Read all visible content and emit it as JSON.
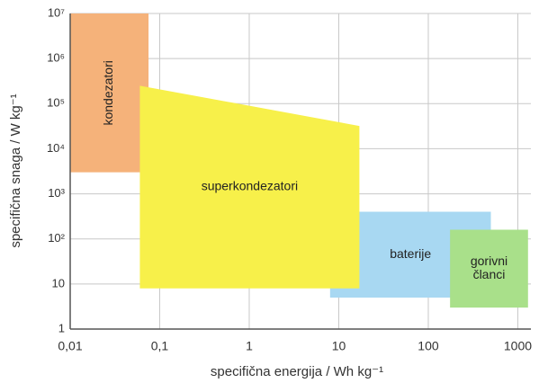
{
  "chart_data": {
    "type": "region",
    "xlabel": "specifična energija / Wh kg⁻¹",
    "ylabel": "specifična snaga / W kg⁻¹",
    "xscale": "log",
    "yscale": "log",
    "grid": true,
    "xlim": [
      0.01,
      1400
    ],
    "ylim": [
      1,
      10000000
    ],
    "xticks": [
      {
        "value": 0.01,
        "label": "0,01"
      },
      {
        "value": 0.1,
        "label": "0,1"
      },
      1,
      10,
      100,
      1000
    ],
    "yticks": [
      1,
      10,
      {
        "value": 100,
        "label": "10²"
      },
      {
        "value": 1000,
        "label": "10³"
      },
      {
        "value": 10000,
        "label": "10⁴"
      },
      {
        "value": 100000,
        "label": "10⁵"
      },
      {
        "value": 1000000,
        "label": "10⁶"
      },
      {
        "value": 10000000,
        "label": "10⁷"
      }
    ],
    "series": [
      {
        "name": [
          "kondezatori"
        ],
        "color": "#f5b27a",
        "x": [
          0.01,
          0.075,
          0.075,
          0.01
        ],
        "y": [
          10000000,
          10000000,
          3000,
          3000
        ]
      },
      {
        "name": [
          "baterije"
        ],
        "color": "#a8d8f2",
        "x": [
          8,
          500,
          500,
          8
        ],
        "y": [
          400,
          400,
          5,
          5
        ]
      },
      {
        "name": [
          "gorivni",
          "članci"
        ],
        "color": "#a9e08a",
        "x": [
          175,
          1300,
          1300,
          175
        ],
        "y": [
          160,
          160,
          3,
          3
        ]
      },
      {
        "name": [
          "superkondezatori"
        ],
        "color": "#f7f04a",
        "x": [
          0.06,
          17,
          17,
          0.06
        ],
        "y": [
          250000,
          32000,
          8,
          8
        ]
      }
    ]
  }
}
